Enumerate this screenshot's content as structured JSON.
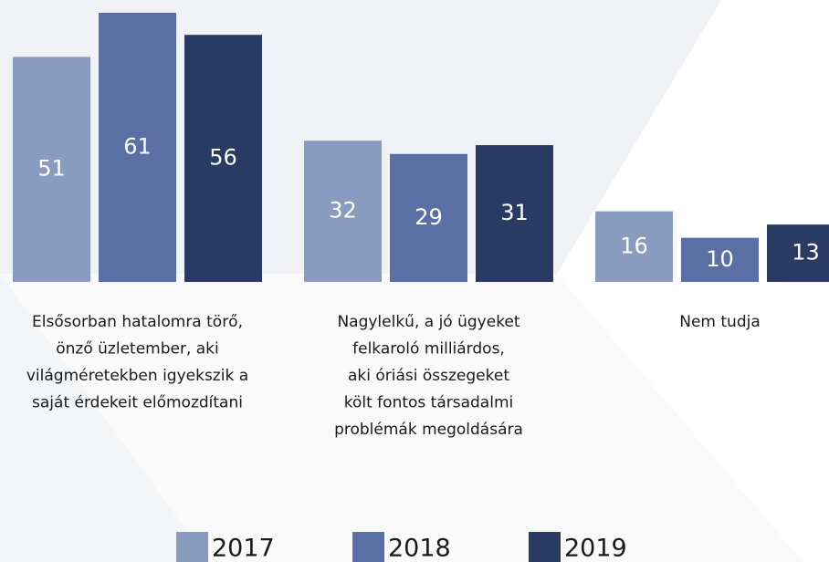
{
  "chart_data": {
    "type": "bar",
    "categories": [
      [
        "Elsősorban hatalomra törő,",
        "önző üzletember, aki",
        "világméretekben igyekszik a",
        "saját érdekeit előmozdítani"
      ],
      [
        "Nagylelkű, a jó ügyeket",
        "felkaroló milliárdos,",
        "aki óriási összegeket",
        "költ fontos társadalmi",
        "problémák megoldására"
      ],
      [
        "Nem tudja"
      ]
    ],
    "series": [
      {
        "name": "2017",
        "color": "#8a9bc0",
        "values": [
          51,
          32,
          16
        ]
      },
      {
        "name": "2018",
        "color": "#5a6fa4",
        "values": [
          61,
          29,
          10
        ]
      },
      {
        "name": "2019",
        "color": "#2a3b63",
        "values": [
          56,
          31,
          13
        ]
      }
    ],
    "legend": "bottom"
  }
}
